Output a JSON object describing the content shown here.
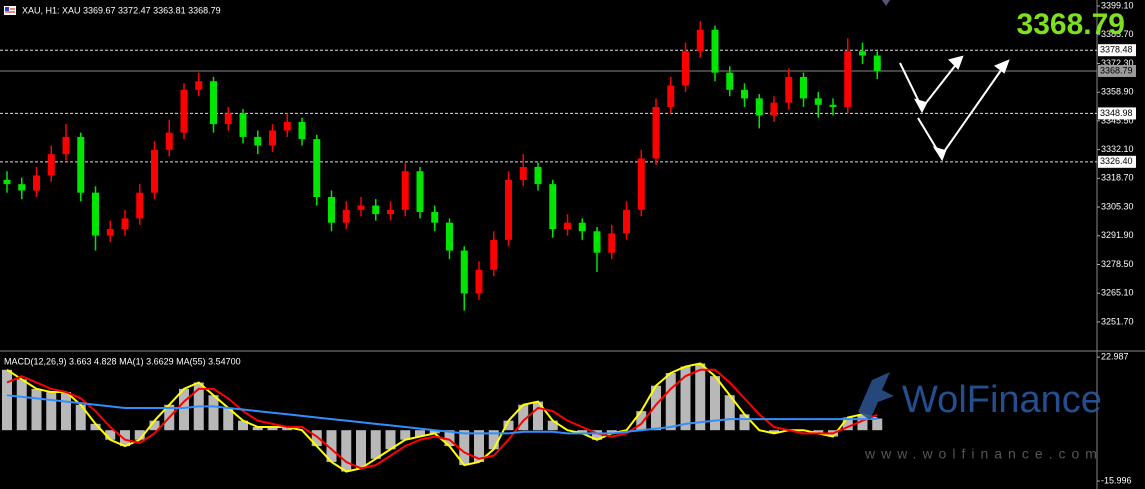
{
  "chart_data": [
    {
      "type": "candlestick",
      "title": "XAU, H1:  XAU  3369.67 3372.47 3363.81 3368.79",
      "price_label": "3368.79",
      "up_color": "#ff0000",
      "down_color": "#00e600",
      "open": [
        3318,
        3316,
        3313,
        3320,
        3330,
        3338,
        3312,
        3292,
        3295,
        3300,
        3312,
        3332,
        3340,
        3360,
        3364,
        3344,
        3349,
        3338,
        3334,
        3341,
        3345,
        3337,
        3310,
        3298,
        3304,
        3306,
        3302,
        3304,
        3322,
        3303,
        3298,
        3285,
        3265,
        3276,
        3290,
        3318,
        3324,
        3316,
        3295,
        3298,
        3294,
        3284,
        3293,
        3304,
        3328,
        3352,
        3362,
        3378,
        3388,
        3368,
        3360,
        3356,
        3348,
        3354,
        3366,
        3356,
        3353,
        3352,
        3378,
        3376
      ],
      "high": [
        3322,
        3319,
        3324,
        3334,
        3344,
        3340,
        3315,
        3299,
        3304,
        3316,
        3336,
        3346,
        3363,
        3368,
        3366,
        3352,
        3351,
        3341,
        3344,
        3349,
        3347,
        3339,
        3313,
        3308,
        3310,
        3309,
        3308,
        3326,
        3324,
        3306,
        3300,
        3287,
        3280,
        3294,
        3322,
        3330,
        3326,
        3318,
        3302,
        3300,
        3296,
        3297,
        3308,
        3332,
        3356,
        3366,
        3382,
        3392,
        3390,
        3371,
        3363,
        3358,
        3357,
        3370,
        3368,
        3359,
        3356,
        3384,
        3382,
        3378
      ],
      "low": [
        3312,
        3309,
        3310,
        3317,
        3327,
        3308,
        3285,
        3289,
        3292,
        3297,
        3309,
        3329,
        3337,
        3357,
        3340,
        3341,
        3335,
        3330,
        3331,
        3338,
        3334,
        3306,
        3294,
        3295,
        3301,
        3299,
        3299,
        3301,
        3300,
        3294,
        3281,
        3257,
        3262,
        3273,
        3287,
        3315,
        3313,
        3291,
        3292,
        3290,
        3275,
        3281,
        3290,
        3301,
        3325,
        3349,
        3359,
        3375,
        3364,
        3357,
        3352,
        3342,
        3345,
        3351,
        3352,
        3347,
        3348,
        3349,
        3372,
        3365
      ],
      "close": [
        3316,
        3313,
        3320,
        3330,
        3338,
        3312,
        3292,
        3295,
        3300,
        3312,
        3332,
        3340,
        3360,
        3364,
        3344,
        3349,
        3338,
        3334,
        3341,
        3345,
        3337,
        3310,
        3298,
        3304,
        3306,
        3302,
        3304,
        3322,
        3303,
        3298,
        3285,
        3265,
        3276,
        3290,
        3318,
        3324,
        3316,
        3295,
        3298,
        3294,
        3284,
        3293,
        3304,
        3328,
        3352,
        3362,
        3378,
        3388,
        3368,
        3360,
        3356,
        3348,
        3354,
        3366,
        3356,
        3353,
        3352,
        3378,
        3376,
        3368.79
      ],
      "ylim": [
        3238.6,
        3401.9
      ],
      "yticks": [
        {
          "value": 3399.1,
          "label": "3399.10"
        },
        {
          "value": 3385.7,
          "label": "3385.70"
        },
        {
          "value": 3372.3,
          "label": "3372.30"
        },
        {
          "value": 3358.9,
          "label": "3358.90"
        },
        {
          "value": 3345.5,
          "label": "3345.50"
        },
        {
          "value": 3332.1,
          "label": "3332.10"
        },
        {
          "value": 3318.7,
          "label": "3318.70"
        },
        {
          "value": 3305.3,
          "label": "3305.30"
        },
        {
          "value": 3291.9,
          "label": "3291.90"
        },
        {
          "value": 3278.5,
          "label": "3278.50"
        },
        {
          "value": 3265.1,
          "label": "3265.10"
        },
        {
          "value": 3251.7,
          "label": "3251.70"
        }
      ],
      "levels": [
        3378.48,
        3348.98,
        {
          "value": 3326.4,
          "label": "3326.40"
        }
      ],
      "current": 3368.79
    },
    {
      "type": "macd",
      "title": "MACD(12,26,9) 3.663 4.828 MA(1) 3.6629 MA(55) 3.54700",
      "histogram_color": "#d8d8d8",
      "series": [
        {
          "color": "#ffff00",
          "values": [
            19,
            16,
            13,
            12,
            12,
            8,
            2,
            -3,
            -5,
            -3,
            3,
            8,
            13,
            15,
            11,
            7,
            3,
            1,
            1,
            1,
            0,
            -5,
            -10,
            -13,
            -12,
            -9,
            -6,
            -3,
            -2,
            -1,
            -5,
            -11,
            -10,
            -6,
            3,
            8,
            9,
            3,
            0,
            -1,
            -3,
            -1,
            0,
            6,
            14,
            18,
            20,
            21,
            17,
            11,
            5,
            0,
            -1,
            0,
            0,
            -1,
            -2,
            4,
            5,
            3.663
          ]
        },
        {
          "color": "#ff0000",
          "values": [
            15,
            17,
            15,
            13,
            12,
            10,
            6,
            1,
            -3,
            -4,
            -1,
            4,
            9,
            13,
            13,
            10,
            6,
            3,
            2,
            1,
            1,
            -2,
            -6,
            -10,
            -12,
            -11,
            -8,
            -5,
            -3,
            -2,
            -3,
            -7,
            -9,
            -8,
            -3,
            3,
            7,
            6,
            3,
            1,
            -1,
            -2,
            -1,
            2,
            8,
            13,
            17,
            19,
            19,
            15,
            10,
            5,
            1,
            0,
            -1,
            -1,
            -1,
            1,
            3,
            4.828
          ]
        },
        {
          "color": "#2f8fff",
          "values": [
            11,
            10.5,
            10,
            9.5,
            9,
            8.5,
            8,
            7.5,
            7,
            7,
            7,
            7,
            7,
            7.5,
            7.5,
            7,
            6.5,
            6,
            5.5,
            5,
            4.5,
            4,
            3.5,
            3,
            2.5,
            2,
            1.5,
            1,
            0.5,
            0,
            -0.5,
            -1,
            -1,
            -1,
            -1,
            -0.5,
            -0.5,
            -0.5,
            -1,
            -1,
            -1,
            -1,
            -0.5,
            0,
            0.5,
            1,
            2,
            2.5,
            3,
            3.5,
            3.5,
            3.5,
            3.5,
            3.5,
            3.5,
            3.5,
            3.5,
            3.5,
            3.5,
            3.547
          ]
        }
      ],
      "ylim": [
        -18.5,
        24.6
      ],
      "yticks": [
        22.987,
        -15.996
      ]
    }
  ],
  "watermark": {
    "brand": "WolFinance",
    "url": "www.wolfinance.com"
  }
}
